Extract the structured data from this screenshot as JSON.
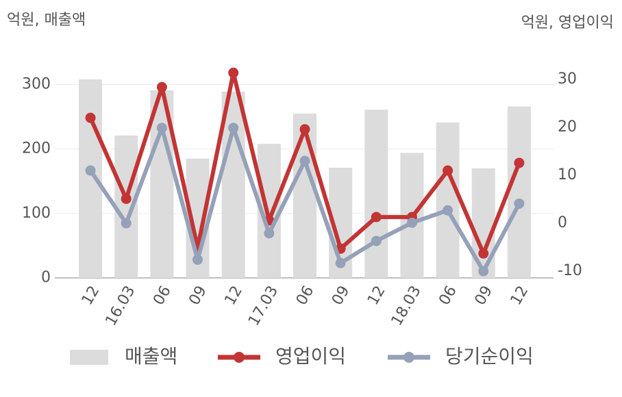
{
  "chart_data": {
    "type": "bar-line",
    "y_label": "억원, 매출액",
    "y2_label": "억원, 영업이익",
    "categories": [
      "12",
      "16.03",
      "06",
      "09",
      "12",
      "17.03",
      "06",
      "09",
      "12",
      "18.03",
      "06",
      "09",
      "12"
    ],
    "series": [
      {
        "name": "매출액",
        "kind": "bar",
        "color": "#dcdcdc",
        "values": [
          308,
          221,
          291,
          185,
          289,
          208,
          255,
          171,
          261,
          194,
          241,
          170,
          266
        ]
      },
      {
        "name": "영업이익",
        "kind": "line",
        "axis": "y2",
        "color": "#c33434",
        "values": [
          22,
          5.1,
          28.4,
          -5.1,
          31.4,
          0.6,
          19.6,
          -5.3,
          1.3,
          1.3,
          11,
          -6.3,
          12.6
        ]
      },
      {
        "name": "당기순이익",
        "kind": "line",
        "axis": "y2",
        "color": "#95a1b8",
        "values": [
          11,
          0,
          19.9,
          -7.6,
          19.9,
          -2.1,
          13,
          -8.3,
          -3.7,
          0.1,
          2.7,
          -10,
          4.1
        ]
      }
    ],
    "ylim": [
      0,
      325
    ],
    "yticks": [
      0,
      100,
      200,
      300
    ],
    "y2lim": [
      -11.4,
      32.3
    ],
    "y2ticks": [
      -10,
      0,
      10,
      20,
      30
    ],
    "grid": true
  }
}
